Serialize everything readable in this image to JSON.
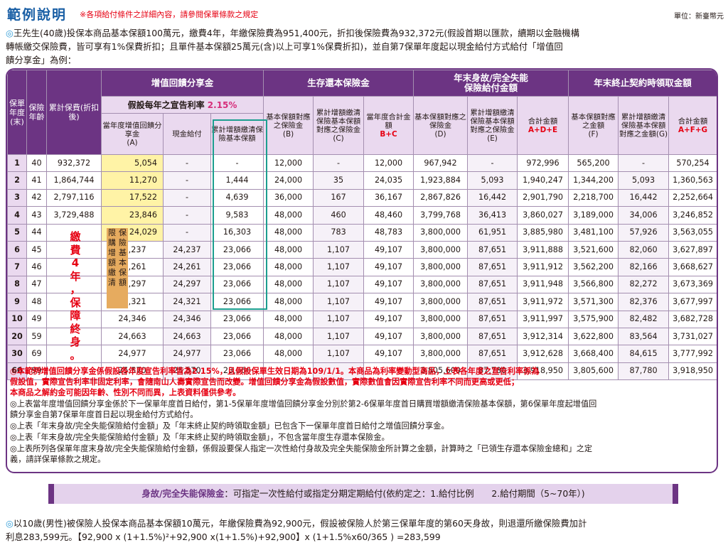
{
  "header": {
    "title": "範例說明",
    "note": "※各項給付條件之詳細內容，請參閱保單條款之規定",
    "unit": "單位：新臺幣元"
  },
  "intro": {
    "bullet": "◎",
    "line1": "王先生(40歲)投保本商品基本保額100萬元，繳費4年，年繳保險費為951,400元，折扣後保險費為932,372元(假設首期以匯款，續期以金融機構",
    "line2": "轉帳繳交保險費，皆可享有1%保費折扣；且單件基本保額25萬元(含)以上可享1%保費折扣)，並自第7保單年度起以現金給付方式給付「增值回",
    "line3": "饋分享金」為例："
  },
  "table": {
    "col_year": "保單年度(末)",
    "col_age": "保險年齡",
    "col_premium": "累計保費(折扣後)",
    "grp_share": "增值回饋分享金",
    "rate_label": "假設每年之宣告利率",
    "rate_value": "2.15%",
    "sub_share_a": "當年度增值回饋分享金",
    "sub_share_a_tag": "(A)",
    "sub_cash": "現金給付",
    "sub_accum": "累計增額繳清保險基本保額",
    "grp_survival": "生存還本保險金",
    "sub_surv_b": "基本保額對應之保險金",
    "sub_surv_b_tag": "(B)",
    "sub_surv_c": "累計增額繳清保險基本保額對應之保險金",
    "sub_surv_c_tag": "(C)",
    "sub_surv_sum": "當年度合計金額",
    "sub_surv_sum_tag": "B+C",
    "grp_death_l1": "年末身故/完全失能",
    "grp_death_l2": "保險給付金額",
    "sub_death_d": "基本保額對應之保險金",
    "sub_death_d_tag": "(D)",
    "sub_death_e": "累計增額繳清保險基本保額對應之保險金(E)",
    "sub_death_sum": "合計金額",
    "sub_death_sum_tag": "A+D+E",
    "grp_cancel": "年末終止契約時領取金額",
    "sub_cancel_f": "基本保額對應之金額",
    "sub_cancel_f_tag": "(F)",
    "sub_cancel_g": "累計增額繳清保險基本保額對應之金額(G)",
    "sub_cancel_sum": "合計金額",
    "sub_cancel_sum_tag": "A+F+G",
    "pay_note": "繳費4年，保障終身。",
    "tag_left": "限購增額繳清",
    "tag_right": "保險基本保額",
    "rows": [
      {
        "year": "1",
        "age": "40",
        "premium": "932,372",
        "a": "5,054",
        "cash": "-",
        "accum": "-",
        "b": "12,000",
        "c": "-",
        "bc": "12,000",
        "d": "967,942",
        "e": "-",
        "ade": "972,996",
        "f": "565,200",
        "g": "-",
        "afg": "570,254"
      },
      {
        "year": "2",
        "age": "41",
        "premium": "1,864,744",
        "a": "11,270",
        "cash": "-",
        "accum": "1,444",
        "b": "24,000",
        "c": "35",
        "bc": "24,035",
        "d": "1,923,884",
        "e": "5,093",
        "ade": "1,940,247",
        "f": "1,344,200",
        "g": "5,093",
        "afg": "1,360,563"
      },
      {
        "year": "3",
        "age": "42",
        "premium": "2,797,116",
        "a": "17,522",
        "cash": "-",
        "accum": "4,639",
        "b": "36,000",
        "c": "167",
        "bc": "36,167",
        "d": "2,867,826",
        "e": "16,442",
        "ade": "2,901,790",
        "f": "2,218,700",
        "g": "16,442",
        "afg": "2,252,664"
      },
      {
        "year": "4",
        "age": "43",
        "premium": "3,729,488",
        "a": "23,846",
        "cash": "-",
        "accum": "9,583",
        "b": "48,000",
        "c": "460",
        "bc": "48,460",
        "d": "3,799,768",
        "e": "36,413",
        "ade": "3,860,027",
        "f": "3,189,000",
        "g": "34,006",
        "afg": "3,246,852"
      },
      {
        "year": "5",
        "age": "44",
        "premium": "",
        "a": "24,029",
        "cash": "-",
        "accum": "16,303",
        "b": "48,000",
        "c": "783",
        "bc": "48,783",
        "d": "3,800,000",
        "e": "61,951",
        "ade": "3,885,980",
        "f": "3,481,100",
        "g": "57,926",
        "afg": "3,563,055"
      },
      {
        "year": "6",
        "age": "45",
        "premium": "",
        "a": "24,237",
        "cash": "24,237",
        "accum": "23,066",
        "b": "48,000",
        "c": "1,107",
        "bc": "49,107",
        "d": "3,800,000",
        "e": "87,651",
        "ade": "3,911,888",
        "f": "3,521,600",
        "g": "82,060",
        "afg": "3,627,897"
      },
      {
        "year": "7",
        "age": "46",
        "premium": "",
        "a": "24,261",
        "cash": "24,261",
        "accum": "23,066",
        "b": "48,000",
        "c": "1,107",
        "bc": "49,107",
        "d": "3,800,000",
        "e": "87,651",
        "ade": "3,911,912",
        "f": "3,562,200",
        "g": "82,166",
        "afg": "3,668,627"
      },
      {
        "year": "8",
        "age": "47",
        "premium": "",
        "a": "24,297",
        "cash": "24,297",
        "accum": "23,066",
        "b": "48,000",
        "c": "1,107",
        "bc": "49,107",
        "d": "3,800,000",
        "e": "87,651",
        "ade": "3,911,948",
        "f": "3,566,800",
        "g": "82,272",
        "afg": "3,673,369"
      },
      {
        "year": "9",
        "age": "48",
        "premium": "",
        "a": "24,321",
        "cash": "24,321",
        "accum": "23,066",
        "b": "48,000",
        "c": "1,107",
        "bc": "49,107",
        "d": "3,800,000",
        "e": "87,651",
        "ade": "3,911,972",
        "f": "3,571,300",
        "g": "82,376",
        "afg": "3,677,997"
      },
      {
        "year": "10",
        "age": "49",
        "premium": "",
        "a": "24,346",
        "cash": "24,346",
        "accum": "23,066",
        "b": "48,000",
        "c": "1,107",
        "bc": "49,107",
        "d": "3,800,000",
        "e": "87,651",
        "ade": "3,911,997",
        "f": "3,575,900",
        "g": "82,482",
        "afg": "3,682,728"
      },
      {
        "year": "20",
        "age": "59",
        "premium": "",
        "a": "24,663",
        "cash": "24,663",
        "accum": "23,066",
        "b": "48,000",
        "c": "1,107",
        "bc": "49,107",
        "d": "3,800,000",
        "e": "87,651",
        "ade": "3,912,314",
        "f": "3,622,800",
        "g": "83,564",
        "afg": "3,731,027"
      },
      {
        "year": "30",
        "age": "69",
        "premium": "",
        "a": "24,977",
        "cash": "24,977",
        "accum": "23,066",
        "b": "48,000",
        "c": "1,107",
        "bc": "49,107",
        "d": "3,800,000",
        "e": "87,651",
        "ade": "3,912,628",
        "f": "3,668,400",
        "g": "84,615",
        "afg": "3,777,992"
      },
      {
        "year": "60",
        "age": "99",
        "premium": "",
        "a": "25,570",
        "cash": "25,570",
        "accum": "23,066",
        "b": "-",
        "c": "-",
        "bc": "-",
        "d": "3,805,600",
        "e": "87,780",
        "ade": "3,918,950",
        "f": "3,805,600",
        "g": "87,780",
        "afg": "3,918,950"
      }
    ]
  },
  "notes": {
    "red_line1": "◎本範例增值回饋分享金係假設各年度宣告利率皆為2.15%，且假設保單生效日期為109/1/1。本商品為利率變動型商品，上表各年度之宣告利率係為",
    "red_line2": "假設值，實際宣告利率非固定利率，會隨南山人壽實際宣告而改變。增值回饋分享金為假設數值，實際數值會因實際宣告利率不同而更高或更低；",
    "red_line3a": "本商品之解約金可能因年齡、性別不同而異，上表資料",
    "red_line3b": "僅供參考",
    "red_line3c": "。",
    "n1a": "◎上表當年度增值回饋分享金係於下一保單年度首日給付，第1-5保單年度增值回饋分享金分別於第2-6保單年度首日購買增額繳清保險基本保額，第6保單年度起增值回",
    "n1b": "饋分享金自第7保單年度首日起以現金給付方式給付。",
    "n2": "◎上表「年末身故/完全失能保險給付金額」及「年末終止契約時領取金額」已包含下一保單年度首日給付之增值回饋分享金。",
    "n3": "◎上表「年末身故/完全失能保險給付金額」及「年末終止契約時領取金額」，不包含當年度生存還本保險金。",
    "n4a": "◎上表所列各保單年度末身故/完全失能保險給付金額，係假設要保人指定一次性給付身故及完全失能保險金所計算之金額，計算時之「已領生存還本保險金總和」之定",
    "n4b": "義，請詳保單條款之規定。"
  },
  "bar": {
    "label": "身故/完全失能保險金",
    "text": "：可指定一次性給付或指定分期定期給付(依約定之：1.給付比例　　2.給付期間（5~70年）)"
  },
  "bottom": {
    "line1": "以10歲(男性)被保險人投保本商品基本保額10萬元，年繳保險費為92,900元，假設被保險人於第三保單年度的第60天身故，則退還所繳保險費加計",
    "line2": "利息283,599元。【92,900 x (1+1.5%)²+92,900 x(1+1.5%)+92,900】x (1+1.5%x60/365 ) =283,599"
  },
  "colors": {
    "title_blue": "#1a5fa5",
    "purple": "#6c3483",
    "light_purple": "#ead9ef",
    "yellow_cell": "#fff3a6",
    "tan_tag": "#e6ab5f",
    "teal_box": "#1c9e8f",
    "red": "#e60012"
  }
}
